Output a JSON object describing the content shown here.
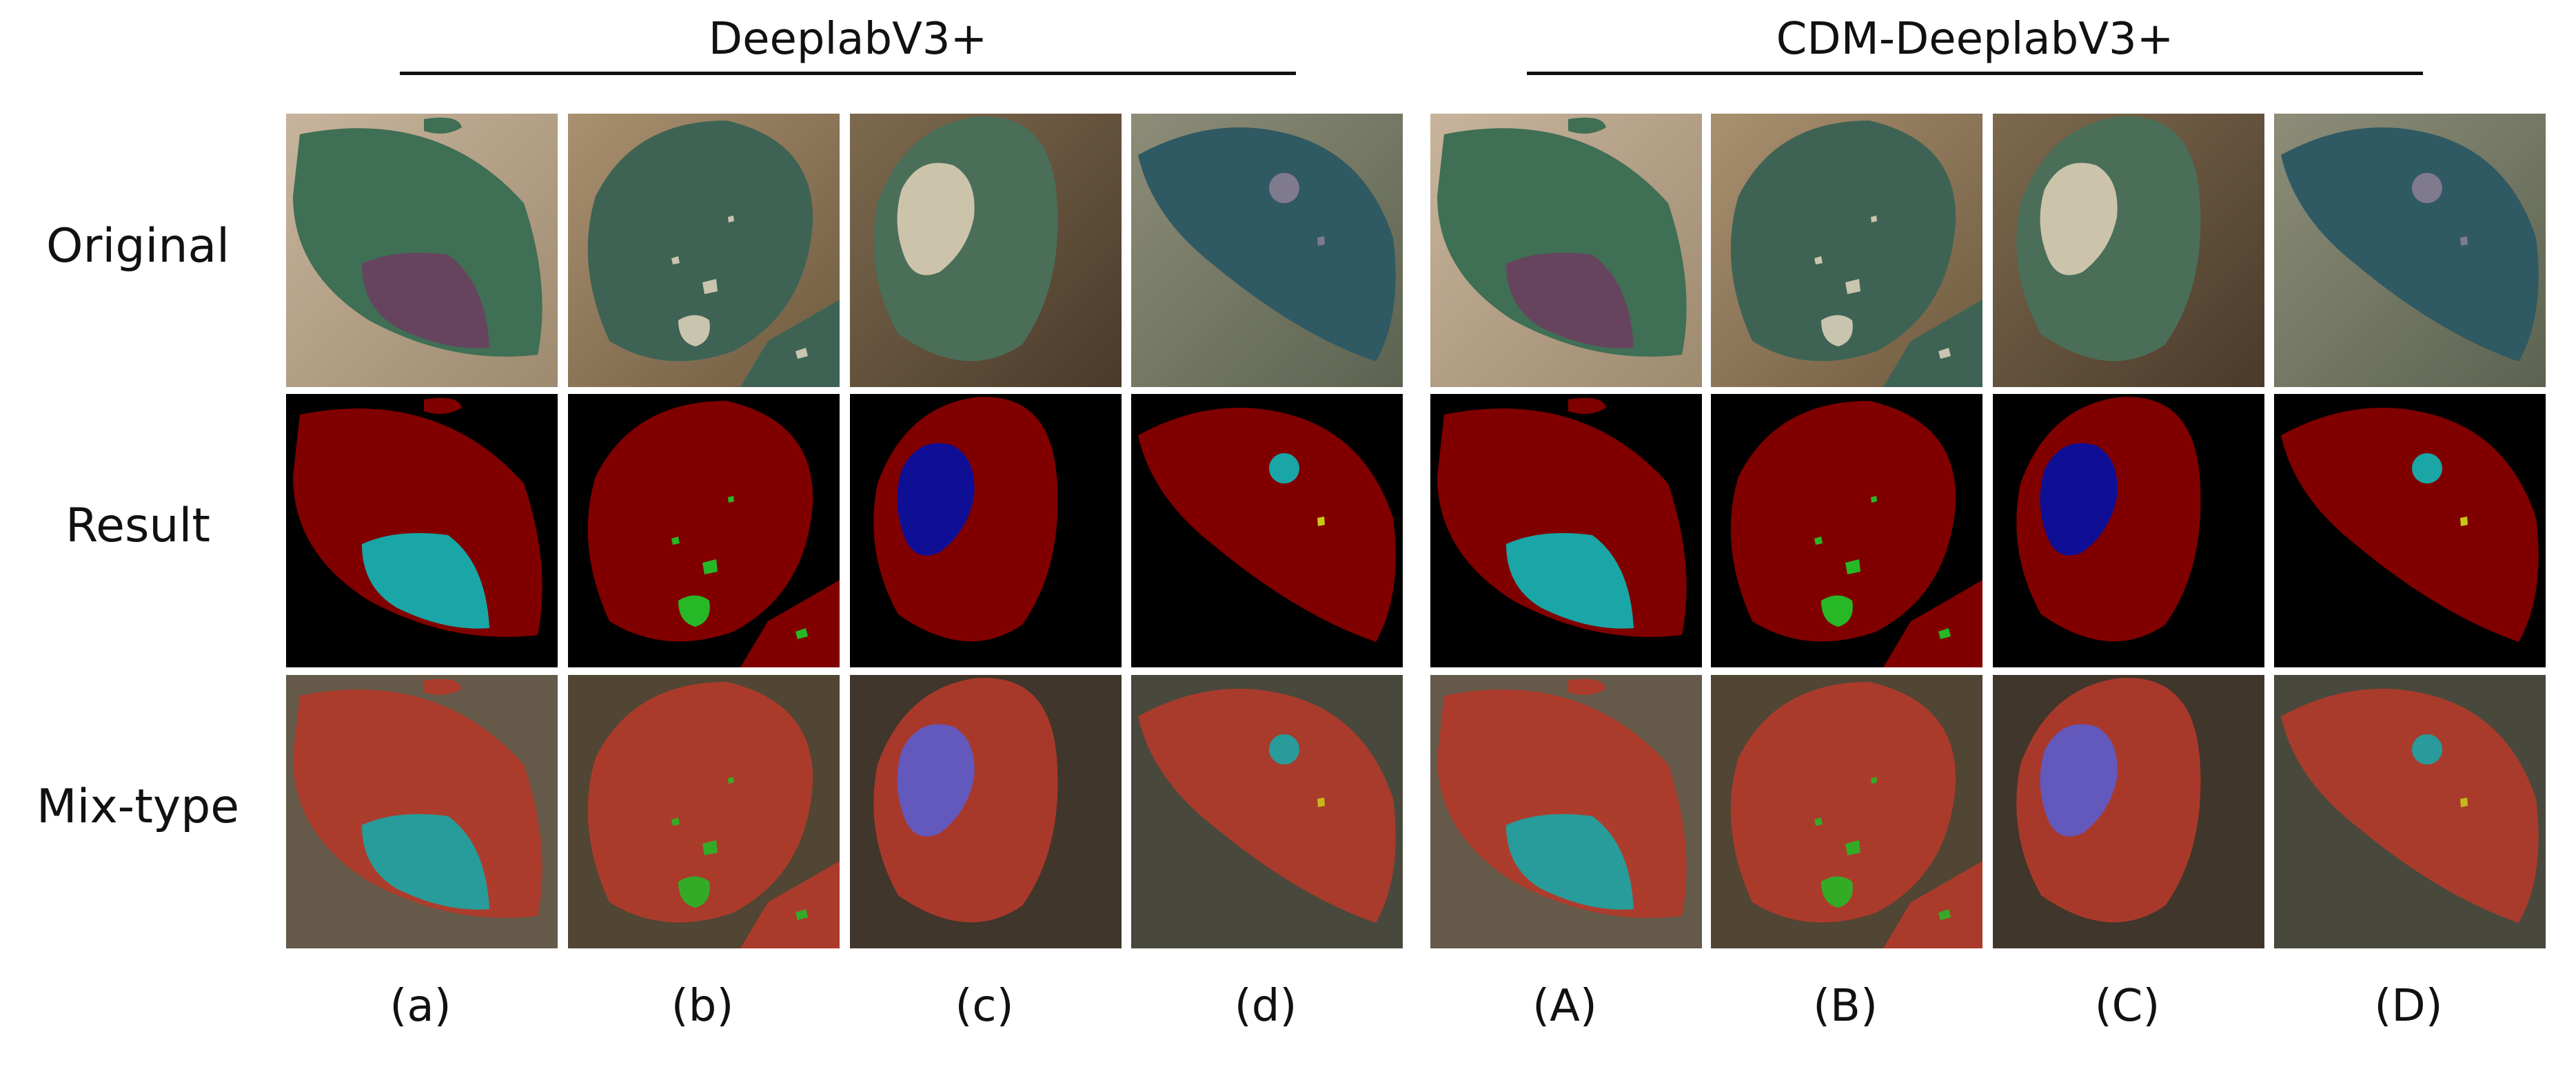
{
  "groups": [
    {
      "title": "DeeplabV3+"
    },
    {
      "title": "CDM-DeeplabV3+"
    }
  ],
  "rows": [
    {
      "label": "Original"
    },
    {
      "label": "Result"
    },
    {
      "label": "Mix-type"
    }
  ],
  "columns": [
    {
      "label": "(a)"
    },
    {
      "label": "(b)"
    },
    {
      "label": "(c)"
    },
    {
      "label": "(d)"
    },
    {
      "label": "(A)"
    },
    {
      "label": "(B)"
    },
    {
      "label": "(C)"
    },
    {
      "label": "(D)"
    }
  ],
  "colors": {
    "leaf_class": "#800000",
    "lesion_teal": "#1aa6a6",
    "lesion_green": "#27b827",
    "lesion_blue": "#0f0f96",
    "lesion_yellow": "#c8c818",
    "background_class": "#000000"
  }
}
